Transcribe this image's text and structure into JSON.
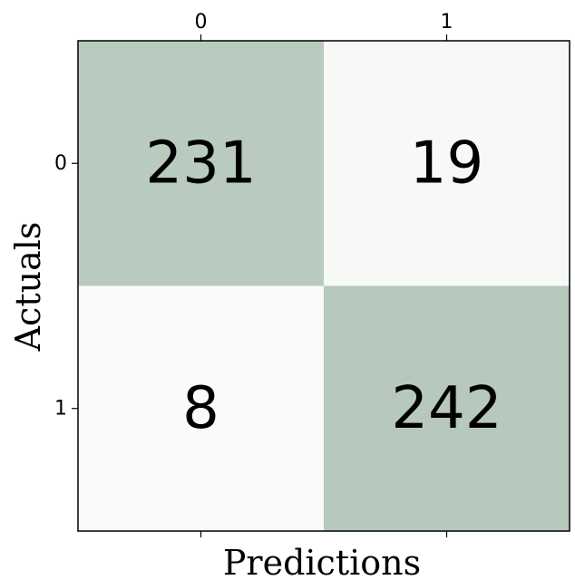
{
  "chart_data": {
    "type": "heatmap",
    "x_categories": [
      "0",
      "1"
    ],
    "y_categories": [
      "0",
      "1"
    ],
    "values": [
      [
        231,
        19
      ],
      [
        8,
        242
      ]
    ],
    "xlabel": "Predictions",
    "ylabel": "Actuals",
    "x_ticks_position": "top",
    "grid": false,
    "colors": {
      "low": "#f9fbf9",
      "high": "#b6c9bc",
      "frame": "#000000"
    }
  }
}
